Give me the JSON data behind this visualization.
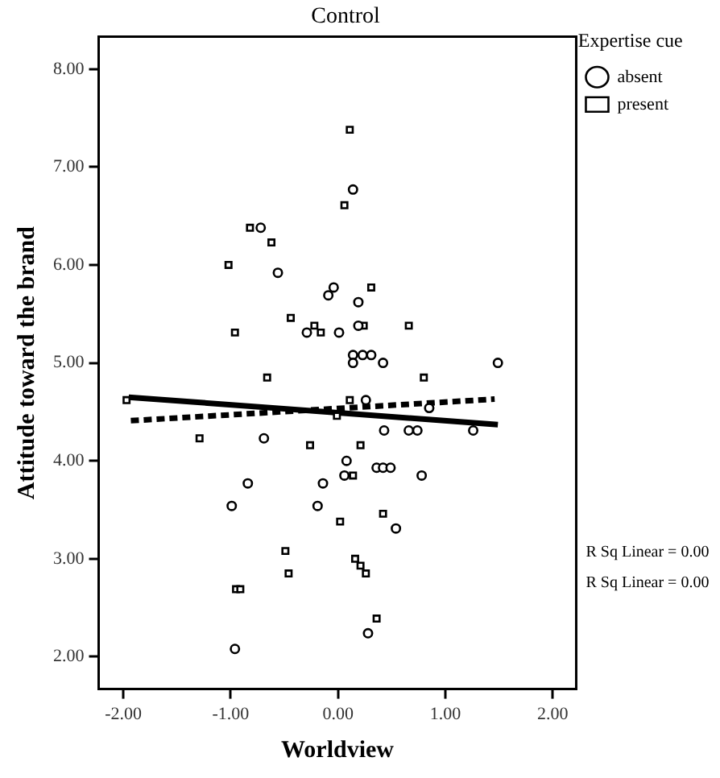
{
  "chart_data": {
    "type": "scatter",
    "title": "Control",
    "xlabel": "Worldview",
    "ylabel": "Attitude toward the brand",
    "legend_title": "Expertise cue",
    "legend": "top right",
    "grid": false,
    "xlim": [
      -2.23,
      2.22
    ],
    "ylim": [
      1.67,
      8.33
    ],
    "xticks": [
      {
        "value": -2,
        "label": "-2.00"
      },
      {
        "value": -1,
        "label": "-1.00"
      },
      {
        "value": 0,
        "label": "0.00"
      },
      {
        "value": 1,
        "label": "1.00"
      },
      {
        "value": 2,
        "label": "2.00"
      }
    ],
    "yticks": [
      {
        "value": 2,
        "label": "2.00"
      },
      {
        "value": 3,
        "label": "3.00"
      },
      {
        "value": 4,
        "label": "4.00"
      },
      {
        "value": 5,
        "label": "5.00"
      },
      {
        "value": 6,
        "label": "6.00"
      },
      {
        "value": 7,
        "label": "7.00"
      },
      {
        "value": 8,
        "label": "8.00"
      }
    ],
    "annotations": [
      "R Sq Linear = 0.00",
      "R Sq Linear = 0.00"
    ],
    "series": [
      {
        "name": "absent",
        "color": "#000000",
        "marker": "circle",
        "x": [
          0.14,
          -0.72,
          -0.56,
          -0.04,
          -0.09,
          0.19,
          -0.29,
          0.01,
          0.19,
          0.14,
          0.14,
          0.23,
          0.31,
          0.42,
          1.49,
          0.26,
          0.85,
          0.43,
          0.66,
          0.74,
          1.26,
          -0.69,
          0.08,
          0.06,
          0.36,
          0.42,
          0.49,
          0.78,
          -0.84,
          -0.14,
          -0.99,
          -0.19,
          0.54,
          0.28,
          -0.96
        ],
        "values": [
          6.77,
          6.38,
          5.92,
          5.77,
          5.69,
          5.62,
          5.31,
          5.31,
          5.38,
          5.08,
          5.0,
          5.08,
          5.08,
          5.0,
          5.0,
          4.62,
          4.54,
          4.31,
          4.31,
          4.31,
          4.31,
          4.23,
          4.0,
          3.85,
          3.93,
          3.93,
          3.93,
          3.85,
          3.77,
          3.77,
          3.54,
          3.54,
          3.31,
          2.24,
          2.08
        ]
      },
      {
        "name": "present",
        "color": "#000000",
        "marker": "square",
        "x": [
          0.11,
          0.06,
          -0.82,
          -0.62,
          -1.02,
          0.31,
          -0.44,
          -0.96,
          -0.22,
          -0.16,
          0.24,
          0.66,
          -0.66,
          0.8,
          -1.97,
          0.11,
          -0.01,
          -1.29,
          -0.26,
          0.21,
          0.14,
          0.02,
          0.42,
          -0.49,
          -0.46,
          -0.95,
          -0.91,
          0.16,
          0.21,
          0.26,
          0.36
        ],
        "values": [
          7.38,
          6.61,
          6.38,
          6.23,
          6.0,
          5.77,
          5.46,
          5.31,
          5.38,
          5.31,
          5.38,
          5.38,
          4.85,
          4.85,
          4.62,
          4.62,
          4.46,
          4.23,
          4.16,
          4.16,
          3.85,
          3.38,
          3.46,
          3.08,
          2.85,
          2.69,
          2.69,
          3.0,
          2.93,
          2.85,
          2.39
        ]
      },
      {
        "type": "line",
        "color": "#000000",
        "marker": "none",
        "line_style": "solid",
        "x": [
          -1.95,
          1.49
        ],
        "values": [
          4.65,
          4.37
        ]
      },
      {
        "type": "line",
        "color": "#000000",
        "marker": "none",
        "line_style": "dashed",
        "x": [
          -1.93,
          1.46
        ],
        "values": [
          4.41,
          4.63
        ]
      }
    ]
  }
}
